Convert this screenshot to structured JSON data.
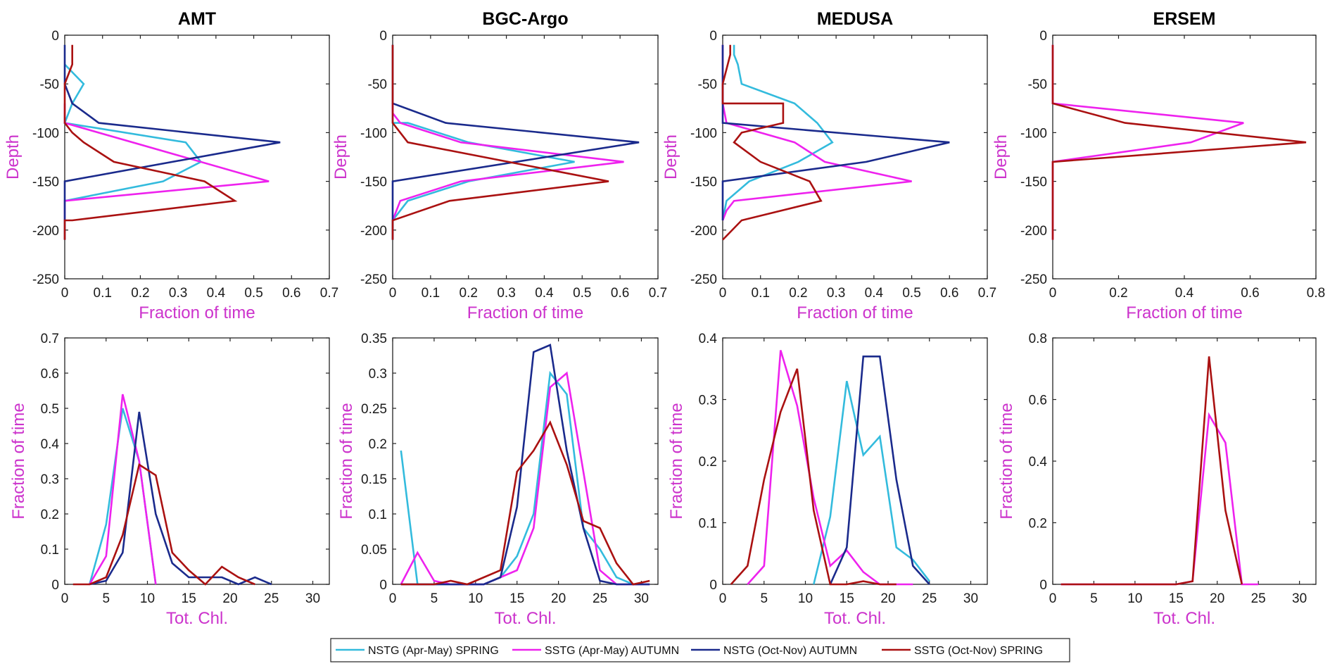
{
  "legend": [
    {
      "name": "NSTG (Apr-May) SPRING",
      "color": "#33bbdd"
    },
    {
      "name": "SSTG (Apr-May) AUTUMN",
      "color": "#ee22ee"
    },
    {
      "name": "NSTG (Oct-Nov) AUTUMN",
      "color": "#1a2a8c"
    },
    {
      "name": "SSTG (Oct-Nov) SPRING",
      "color": "#aa1111"
    }
  ],
  "chart_data": [
    {
      "type": "line",
      "title": "AMT",
      "xlabel": "Fraction of time",
      "ylabel": "Depth",
      "xlim": [
        0,
        0.7
      ],
      "ylim": [
        -250,
        0
      ],
      "xticks": [
        "0",
        "0.1",
        "0.2",
        "0.3",
        "0.4",
        "0.5",
        "0.6",
        "0.7"
      ],
      "xtick_values": [
        0,
        0.1,
        0.2,
        0.3,
        0.4,
        0.5,
        0.6,
        0.7
      ],
      "yticks": [
        "0",
        "-50",
        "-100",
        "-150",
        "-200",
        "-250"
      ],
      "ytick_values": [
        0,
        -50,
        -100,
        -150,
        -200,
        -250
      ],
      "series": [
        {
          "name": "NSTG (Apr-May) SPRING",
          "x": [
            0.0,
            0.05,
            0.02,
            0.0,
            0.0,
            0.32,
            0.36,
            0.26,
            0.0
          ],
          "y": [
            -30,
            -50,
            -70,
            -90,
            -90,
            -110,
            -130,
            -150,
            -170
          ]
        },
        {
          "name": "SSTG (Apr-May) AUTUMN",
          "x": [
            0.0,
            0.0,
            0.54,
            0.0,
            0.0
          ],
          "y": [
            -70,
            -90,
            -150,
            -170,
            -190
          ]
        },
        {
          "name": "NSTG (Oct-Nov) AUTUMN",
          "x": [
            0.0,
            0.0,
            0.02,
            0.09,
            0.57,
            0.0,
            0.0,
            0.0
          ],
          "y": [
            -10,
            -50,
            -70,
            -90,
            -110,
            -150,
            -190,
            -210
          ]
        },
        {
          "name": "SSTG (Oct-Nov) SPRING",
          "x": [
            0.02,
            0.02,
            0.0,
            0.0,
            0.02,
            0.05,
            0.13,
            0.37,
            0.45,
            0.02,
            0.0,
            0.0
          ],
          "y": [
            -10,
            -30,
            -50,
            -90,
            -100,
            -110,
            -130,
            -150,
            -170,
            -190,
            -190,
            -210
          ]
        }
      ]
    },
    {
      "type": "line",
      "title": "BGC-Argo",
      "xlabel": "Fraction of time",
      "ylabel": "Depth",
      "xlim": [
        0,
        0.7
      ],
      "ylim": [
        -250,
        0
      ],
      "xticks": [
        "0",
        "0.1",
        "0.2",
        "0.3",
        "0.4",
        "0.5",
        "0.6",
        "0.7"
      ],
      "xtick_values": [
        0,
        0.1,
        0.2,
        0.3,
        0.4,
        0.5,
        0.6,
        0.7
      ],
      "yticks": [
        "0",
        "-50",
        "-100",
        "-150",
        "-200",
        "-250"
      ],
      "ytick_values": [
        0,
        -50,
        -100,
        -150,
        -200,
        -250
      ],
      "series": [
        {
          "name": "NSTG (Apr-May) SPRING",
          "x": [
            0.0,
            0.0,
            0.04,
            0.2,
            0.48,
            0.2,
            0.04,
            0.0,
            0.0
          ],
          "y": [
            -70,
            -90,
            -90,
            -110,
            -130,
            -150,
            -170,
            -190,
            -210
          ]
        },
        {
          "name": "SSTG (Apr-May) AUTUMN",
          "x": [
            0.0,
            0.0,
            0.02,
            0.18,
            0.61,
            0.18,
            0.02,
            0.0
          ],
          "y": [
            -70,
            -80,
            -90,
            -110,
            -130,
            -150,
            -170,
            -190
          ]
        },
        {
          "name": "NSTG (Oct-Nov) AUTUMN",
          "x": [
            0.0,
            0.0,
            0.14,
            0.65,
            0.0,
            0.0,
            0.0
          ],
          "y": [
            -10,
            -70,
            -90,
            -110,
            -150,
            -190,
            -210
          ]
        },
        {
          "name": "SSTG (Oct-Nov) SPRING",
          "x": [
            0.0,
            0.0,
            0.0,
            0.04,
            0.57,
            0.15,
            0.0,
            0.0
          ],
          "y": [
            -10,
            -70,
            -90,
            -110,
            -150,
            -170,
            -190,
            -210
          ]
        }
      ]
    },
    {
      "type": "line",
      "title": "MEDUSA",
      "xlabel": "Fraction of time",
      "ylabel": "Depth",
      "xlim": [
        0,
        0.7
      ],
      "ylim": [
        -250,
        0
      ],
      "xticks": [
        "0",
        "0.1",
        "0.2",
        "0.3",
        "0.4",
        "0.5",
        "0.6",
        "0.7"
      ],
      "xtick_values": [
        0,
        0.1,
        0.2,
        0.3,
        0.4,
        0.5,
        0.6,
        0.7
      ],
      "yticks": [
        "0",
        "-50",
        "-100",
        "-150",
        "-200",
        "-250"
      ],
      "ytick_values": [
        0,
        -50,
        -100,
        -150,
        -200,
        -250
      ],
      "series": [
        {
          "name": "NSTG (Apr-May) SPRING",
          "x": [
            0.03,
            0.03,
            0.04,
            0.05,
            0.19,
            0.25,
            0.29,
            0.2,
            0.07,
            0.01,
            0.0
          ],
          "y": [
            -10,
            -20,
            -30,
            -50,
            -70,
            -90,
            -110,
            -130,
            -150,
            -170,
            -190
          ]
        },
        {
          "name": "SSTG (Apr-May) AUTUMN",
          "x": [
            0.0,
            0.0,
            0.0,
            0.0,
            0.01,
            0.19,
            0.27,
            0.5,
            0.03,
            0.01,
            0.0
          ],
          "y": [
            -10,
            -30,
            -50,
            -70,
            -90,
            -110,
            -130,
            -150,
            -170,
            -180,
            -190
          ]
        },
        {
          "name": "NSTG (Oct-Nov) AUTUMN",
          "x": [
            0.0,
            0.0,
            0.0,
            0.6,
            0.38,
            0.0,
            0.0,
            0.0
          ],
          "y": [
            -10,
            -50,
            -90,
            -110,
            -130,
            -150,
            -170,
            -190
          ]
        },
        {
          "name": "SSTG (Oct-Nov) SPRING",
          "x": [
            0.02,
            0.02,
            0.0,
            0.0,
            0.16,
            0.16,
            0.05,
            0.03,
            0.1,
            0.23,
            0.26,
            0.05,
            0.0
          ],
          "y": [
            -10,
            -20,
            -50,
            -70,
            -70,
            -90,
            -100,
            -110,
            -130,
            -150,
            -170,
            -190,
            -210
          ]
        }
      ]
    },
    {
      "type": "line",
      "title": "ERSEM",
      "xlabel": "Fraction of time",
      "ylabel": "Depth",
      "xlim": [
        0,
        0.8
      ],
      "ylim": [
        -250,
        0
      ],
      "xticks": [
        "0",
        "0.2",
        "0.4",
        "0.6",
        "0.8"
      ],
      "xtick_values": [
        0,
        0.2,
        0.4,
        0.6,
        0.8
      ],
      "yticks": [
        "0",
        "-50",
        "-100",
        "-150",
        "-200",
        "-250"
      ],
      "ytick_values": [
        0,
        -50,
        -100,
        -150,
        -200,
        -250
      ],
      "series": [
        {
          "name": "SSTG (Apr-May) AUTUMN",
          "x": [
            0.0,
            0.0,
            0.58,
            0.42,
            0.0,
            0.0
          ],
          "y": [
            -10,
            -70,
            -90,
            -110,
            -130,
            -210
          ]
        },
        {
          "name": "SSTG (Oct-Nov) SPRING",
          "x": [
            0.0,
            0.0,
            0.22,
            0.77,
            0.0,
            0.0
          ],
          "y": [
            -10,
            -70,
            -90,
            -110,
            -130,
            -210
          ]
        }
      ]
    },
    {
      "type": "line",
      "title": "",
      "xlabel": "Tot. Chl.",
      "ylabel": "Fraction of time",
      "xlim": [
        0,
        32
      ],
      "ylim": [
        0,
        0.7
      ],
      "xticks": [
        "0",
        "5",
        "10",
        "15",
        "20",
        "25",
        "30"
      ],
      "xtick_values": [
        0,
        5,
        10,
        15,
        20,
        25,
        30
      ],
      "yticks": [
        "0",
        "0.1",
        "0.2",
        "0.3",
        "0.4",
        "0.5",
        "0.6",
        "0.7"
      ],
      "ytick_values": [
        0,
        0.1,
        0.2,
        0.3,
        0.4,
        0.5,
        0.6,
        0.7
      ],
      "series": [
        {
          "name": "NSTG (Apr-May) SPRING",
          "x": [
            3,
            5,
            7,
            9,
            11
          ],
          "y": [
            0.0,
            0.17,
            0.5,
            0.35,
            0.0
          ]
        },
        {
          "name": "SSTG (Apr-May) AUTUMN",
          "x": [
            3,
            5,
            7,
            9,
            11
          ],
          "y": [
            0.0,
            0.08,
            0.54,
            0.35,
            0.0
          ]
        },
        {
          "name": "NSTG (Oct-Nov) AUTUMN",
          "x": [
            3,
            5,
            7,
            9,
            11,
            13,
            15,
            17,
            19,
            21,
            23,
            25
          ],
          "y": [
            0.0,
            0.01,
            0.09,
            0.49,
            0.2,
            0.06,
            0.02,
            0.02,
            0.02,
            0.0,
            0.02,
            0.0
          ]
        },
        {
          "name": "SSTG (Oct-Nov) SPRING",
          "x": [
            1,
            3,
            5,
            7,
            9,
            11,
            13,
            15,
            17,
            19,
            21,
            23
          ],
          "y": [
            0.0,
            0.0,
            0.02,
            0.14,
            0.34,
            0.31,
            0.09,
            0.04,
            0.0,
            0.05,
            0.02,
            0.0
          ]
        }
      ]
    },
    {
      "type": "line",
      "title": "",
      "xlabel": "Tot. Chl.",
      "ylabel": "Fraction of time",
      "xlim": [
        0,
        32
      ],
      "ylim": [
        0,
        0.35
      ],
      "xticks": [
        "0",
        "5",
        "10",
        "15",
        "20",
        "25",
        "30"
      ],
      "xtick_values": [
        0,
        5,
        10,
        15,
        20,
        25,
        30
      ],
      "yticks": [
        "0",
        "0.05",
        "0.1",
        "0.15",
        "0.2",
        "0.25",
        "0.3",
        "0.35"
      ],
      "ytick_values": [
        0,
        0.05,
        0.1,
        0.15,
        0.2,
        0.25,
        0.3,
        0.35
      ],
      "series": [
        {
          "name": "NSTG (Apr-May) SPRING",
          "x": [
            1,
            3,
            5,
            7,
            9,
            11,
            13,
            15,
            17,
            19,
            21,
            23,
            25,
            27,
            29,
            31
          ],
          "y": [
            0.19,
            0.0,
            0.0,
            0.0,
            0.0,
            0.0,
            0.01,
            0.04,
            0.1,
            0.3,
            0.27,
            0.08,
            0.05,
            0.01,
            0.0,
            0.0
          ]
        },
        {
          "name": "SSTG (Apr-May) AUTUMN",
          "x": [
            1,
            3,
            5,
            7,
            9,
            11,
            13,
            15,
            17,
            19,
            21,
            23,
            25,
            27,
            29,
            31
          ],
          "y": [
            0.0,
            0.045,
            0.005,
            0.0,
            0.0,
            0.0,
            0.01,
            0.02,
            0.08,
            0.28,
            0.3,
            0.16,
            0.02,
            0.0,
            0.0,
            0.0
          ]
        },
        {
          "name": "NSTG (Oct-Nov) AUTUMN",
          "x": [
            1,
            3,
            5,
            7,
            9,
            11,
            13,
            15,
            17,
            19,
            21,
            23,
            25,
            27,
            29,
            31
          ],
          "y": [
            0.0,
            0.0,
            0.0,
            0.0,
            0.0,
            0.0,
            0.01,
            0.11,
            0.33,
            0.34,
            0.19,
            0.08,
            0.005,
            0.0,
            0.0,
            0.0
          ]
        },
        {
          "name": "SSTG (Oct-Nov) SPRING",
          "x": [
            1,
            3,
            5,
            7,
            9,
            11,
            13,
            15,
            17,
            19,
            21,
            23,
            25,
            27,
            29,
            31
          ],
          "y": [
            0.0,
            0.0,
            0.0,
            0.005,
            0.0,
            0.01,
            0.02,
            0.16,
            0.19,
            0.23,
            0.17,
            0.09,
            0.08,
            0.03,
            0.0,
            0.005
          ]
        }
      ]
    },
    {
      "type": "line",
      "title": "",
      "xlabel": "Tot. Chl.",
      "ylabel": "Fraction of time",
      "xlim": [
        0,
        32
      ],
      "ylim": [
        0,
        0.4
      ],
      "xticks": [
        "0",
        "5",
        "10",
        "15",
        "20",
        "25",
        "30"
      ],
      "xtick_values": [
        0,
        5,
        10,
        15,
        20,
        25,
        30
      ],
      "yticks": [
        "0",
        "0.1",
        "0.2",
        "0.3",
        "0.4"
      ],
      "ytick_values": [
        0,
        0.1,
        0.2,
        0.3,
        0.4
      ],
      "series": [
        {
          "name": "NSTG (Apr-May) SPRING",
          "x": [
            11,
            13,
            15,
            17,
            19,
            21,
            23,
            25
          ],
          "y": [
            0.0,
            0.11,
            0.33,
            0.21,
            0.24,
            0.06,
            0.04,
            0.005
          ]
        },
        {
          "name": "SSTG (Apr-May) AUTUMN",
          "x": [
            3,
            5,
            7,
            9,
            11,
            13,
            15,
            17,
            19,
            21,
            23
          ],
          "y": [
            0.0,
            0.03,
            0.38,
            0.29,
            0.14,
            0.03,
            0.055,
            0.02,
            0.0,
            0.0,
            0.0
          ]
        },
        {
          "name": "NSTG (Oct-Nov) AUTUMN",
          "x": [
            13,
            15,
            17,
            19,
            21,
            23,
            25
          ],
          "y": [
            0.0,
            0.06,
            0.37,
            0.37,
            0.17,
            0.03,
            0.0
          ]
        },
        {
          "name": "SSTG (Oct-Nov) SPRING",
          "x": [
            1,
            3,
            5,
            7,
            9,
            11,
            13,
            15,
            17,
            19,
            21
          ],
          "y": [
            0.0,
            0.03,
            0.17,
            0.28,
            0.35,
            0.12,
            0.0,
            0.0,
            0.005,
            0.0,
            0.0
          ]
        }
      ]
    },
    {
      "type": "line",
      "title": "",
      "xlabel": "Tot. Chl.",
      "ylabel": "Fraction of time",
      "xlim": [
        0,
        32
      ],
      "ylim": [
        0,
        0.8
      ],
      "xticks": [
        "0",
        "5",
        "10",
        "15",
        "20",
        "25",
        "30"
      ],
      "xtick_values": [
        0,
        5,
        10,
        15,
        20,
        25,
        30
      ],
      "yticks": [
        "0",
        "0.2",
        "0.4",
        "0.6",
        "0.8"
      ],
      "ytick_values": [
        0,
        0.2,
        0.4,
        0.6,
        0.8
      ],
      "series": [
        {
          "name": "SSTG (Apr-May) AUTUMN",
          "x": [
            1,
            15,
            17,
            19,
            21,
            23,
            25
          ],
          "y": [
            0.0,
            0.0,
            0.01,
            0.55,
            0.46,
            0.0,
            0.0
          ]
        },
        {
          "name": "SSTG (Oct-Nov) SPRING",
          "x": [
            1,
            15,
            17,
            19,
            21,
            23
          ],
          "y": [
            0.0,
            0.0,
            0.01,
            0.74,
            0.24,
            0.0
          ]
        }
      ]
    }
  ]
}
